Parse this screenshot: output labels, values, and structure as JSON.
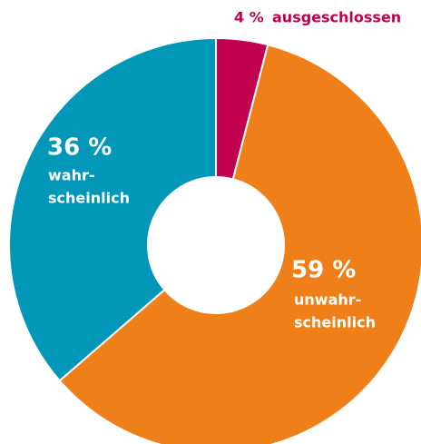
{
  "chart_data": {
    "type": "donut",
    "categories": [
      [
        "ausgeschlossen"
      ],
      [
        "unwahr-",
        "scheinlich"
      ],
      [
        "wahr-",
        "scheinlich"
      ]
    ],
    "values": [
      4,
      59,
      36
    ],
    "value_labels": [
      "4 %",
      "59 %",
      "36 %"
    ],
    "colors": [
      "#c2004f",
      "#ef8019",
      "#0097b8"
    ]
  }
}
